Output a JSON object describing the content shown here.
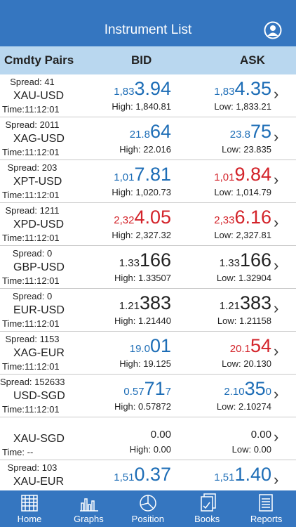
{
  "header": {
    "title": "Instrument List"
  },
  "columns": [
    "Cmdty Pairs",
    "BID",
    "ASK"
  ],
  "rows": [
    {
      "spread": "Spread: 41",
      "pair": "XAU-USD",
      "time": "Time:11:12:01",
      "bid": {
        "pre": "1,83",
        "main": "3.94",
        "color": "blue"
      },
      "high": "High: 1,840.81",
      "ask": {
        "pre": "1,83",
        "main": "4.35",
        "color": "blue"
      },
      "low": "Low: 1,833.21"
    },
    {
      "spread": "Spread: 2011",
      "pair": "XAG-USD",
      "time": "Time:11:12:01",
      "bid": {
        "pre": "21.8",
        "main": "64",
        "color": "blue"
      },
      "high": "High: 22.016",
      "ask": {
        "pre": "23.8",
        "main": "75",
        "color": "blue"
      },
      "low": "Low: 23.835"
    },
    {
      "spread": "Spread: 203",
      "pair": "XPT-USD",
      "time": "Time:11:12:01",
      "bid": {
        "pre": "1,01",
        "main": "7.81",
        "color": "blue"
      },
      "high": "High: 1,020.73",
      "ask": {
        "pre": "1,01",
        "main": "9.84",
        "color": "red"
      },
      "low": "Low: 1,014.79"
    },
    {
      "spread": "Spread: 1211",
      "pair": "XPD-USD",
      "time": "Time:11:12:01",
      "bid": {
        "pre": "2,32",
        "main": "4.05",
        "color": "red"
      },
      "high": "High: 2,327.32",
      "ask": {
        "pre": "2,33",
        "main": "6.16",
        "color": "red"
      },
      "low": "Low: 2,327.81"
    },
    {
      "spread": "Spread: 0",
      "pair": "GBP-USD",
      "time": "Time:11:12:01",
      "bid": {
        "pre": "1.33",
        "main": "166",
        "color": "black"
      },
      "high": "High: 1.33507",
      "ask": {
        "pre": "1.33",
        "main": "166",
        "color": "black"
      },
      "low": "Low: 1.32904"
    },
    {
      "spread": "Spread: 0",
      "pair": "EUR-USD",
      "time": "Time:11:12:01",
      "bid": {
        "pre": "1.21",
        "main": "383",
        "color": "black"
      },
      "high": "High: 1.21440",
      "ask": {
        "pre": "1.21",
        "main": "383",
        "color": "black"
      },
      "low": "Low: 1.21158"
    },
    {
      "spread": "Spread: 1153",
      "pair": "XAG-EUR",
      "time": "Time:11:12:01",
      "bid": {
        "pre": "19.0",
        "main": "01",
        "color": "blue"
      },
      "high": "High: 19.125",
      "ask": {
        "pre": "20.1",
        "main": "54",
        "color": "red"
      },
      "low": "Low: 20.130"
    },
    {
      "spread": "Spread: 152633",
      "pair": "USD-SGD",
      "time": "Time:11:12:01",
      "bid": {
        "pre": "0.57",
        "main": "71",
        "post": "7",
        "color": "blue"
      },
      "high": "High: 0.57872",
      "ask": {
        "pre": "2.10",
        "main": "35",
        "post": "0",
        "color": "blue"
      },
      "low": "Low: 2.10274"
    },
    {
      "pair": "XAU-SGD",
      "time": "Time:    --",
      "bid": {
        "main": "0.00",
        "color": "black",
        "small": true
      },
      "high": "High: 0.00",
      "ask": {
        "main": "0.00",
        "color": "black",
        "small": true
      },
      "low": "Low: 0.00"
    },
    {
      "spread": "Spread: 103",
      "pair": "XAU-EUR",
      "bid": {
        "pre": "1,51",
        "main": "0.37",
        "color": "blue"
      },
      "ask": {
        "pre": "1,51",
        "main": "1.40",
        "color": "blue"
      }
    }
  ],
  "tabs": [
    "Home",
    "Graphs",
    "Position",
    "Books",
    "Reports"
  ]
}
